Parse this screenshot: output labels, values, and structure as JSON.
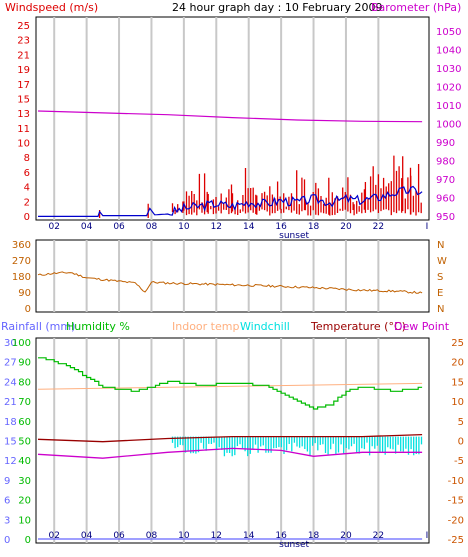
{
  "colors": {
    "wind": "#dd0000",
    "gust_avg": "#0000cc",
    "baro": "#cc00cc",
    "dir": "#c06000",
    "rain": "#6666ff",
    "hum": "#00bb00",
    "indoor": "#ffb080",
    "windchill": "#00e0e0",
    "temp": "#990000",
    "dew": "#cc00cc",
    "grid": "#c8c8c8",
    "tempaxis": "#cc5500"
  },
  "chart_data": [
    {
      "type": "bar",
      "panel": "wind-baro",
      "title": "24 hour graph day : 10 February 2009",
      "left_label": "Windspeed (m/s)",
      "right_label": "Barometer (hPa)",
      "left_ticks": [
        "25",
        "23",
        "21",
        "19",
        "17",
        "15",
        "13",
        "11",
        "10",
        "8",
        "6",
        "4",
        "2",
        "0"
      ],
      "right_ticks": [
        "1050",
        "1040",
        "1030",
        "1020",
        "1010",
        "1000",
        "990",
        "980",
        "970",
        "960",
        "950"
      ],
      "x_ticks": [
        "02",
        "04",
        "06",
        "08",
        "10",
        "12",
        "14",
        "16",
        "18",
        "20",
        "22"
      ],
      "x_end_label": "I",
      "sunset_label": "sunset",
      "ylim_left": [
        0,
        25
      ],
      "ylim_right": [
        947,
        1053
      ],
      "wind_peaks": [
        {
          "h": 3.8,
          "v": 1.0
        },
        {
          "h": 6.8,
          "v": 1.8
        },
        {
          "h": 8.3,
          "v": 3.0
        },
        {
          "h": 9.0,
          "v": 4.5
        },
        {
          "h": 9.8,
          "v": 5.8
        },
        {
          "h": 10.5,
          "v": 4.0
        },
        {
          "h": 11.3,
          "v": 6.0
        },
        {
          "h": 12.0,
          "v": 3.8
        },
        {
          "h": 12.8,
          "v": 6.5
        },
        {
          "h": 13.5,
          "v": 3.5
        },
        {
          "h": 14.3,
          "v": 6.0
        },
        {
          "h": 15.0,
          "v": 4.5
        },
        {
          "h": 15.8,
          "v": 6.5
        },
        {
          "h": 16.5,
          "v": 5.0
        },
        {
          "h": 17.3,
          "v": 6.0
        },
        {
          "h": 18.0,
          "v": 4.5
        },
        {
          "h": 18.8,
          "v": 6.5
        },
        {
          "h": 19.5,
          "v": 5.5
        },
        {
          "h": 20.2,
          "v": 7.0
        },
        {
          "h": 21.0,
          "v": 6.0
        },
        {
          "h": 21.8,
          "v": 8.0
        },
        {
          "h": 22.5,
          "v": 8.5
        },
        {
          "h": 23.0,
          "v": 7.0
        }
      ],
      "wind_avg": [
        {
          "h": 0.0,
          "v": 0.2
        },
        {
          "h": 3.7,
          "v": 0.2
        },
        {
          "h": 3.8,
          "v": 0.8
        },
        {
          "h": 4.0,
          "v": 0.3
        },
        {
          "h": 6.7,
          "v": 0.3
        },
        {
          "h": 6.9,
          "v": 1.2
        },
        {
          "h": 7.2,
          "v": 0.4
        },
        {
          "h": 8.0,
          "v": 0.5
        },
        {
          "h": 9.0,
          "v": 1.2
        },
        {
          "h": 10.0,
          "v": 1.5
        },
        {
          "h": 11.0,
          "v": 1.8
        },
        {
          "h": 12.0,
          "v": 1.5
        },
        {
          "h": 13.0,
          "v": 2.0
        },
        {
          "h": 14.0,
          "v": 1.8
        },
        {
          "h": 15.0,
          "v": 2.2
        },
        {
          "h": 16.0,
          "v": 2.0
        },
        {
          "h": 17.0,
          "v": 2.4
        },
        {
          "h": 18.0,
          "v": 2.0
        },
        {
          "h": 19.0,
          "v": 2.4
        },
        {
          "h": 20.0,
          "v": 2.2
        },
        {
          "h": 21.0,
          "v": 2.6
        },
        {
          "h": 22.0,
          "v": 3.2
        },
        {
          "h": 23.0,
          "v": 3.5
        },
        {
          "h": 23.7,
          "v": 3.3
        }
      ],
      "barometer": [
        {
          "h": 0,
          "v": 1004.0
        },
        {
          "h": 4,
          "v": 1003.0
        },
        {
          "h": 8,
          "v": 1002.0
        },
        {
          "h": 12,
          "v": 1000.5
        },
        {
          "h": 16,
          "v": 999.2
        },
        {
          "h": 20,
          "v": 998.5
        },
        {
          "h": 23.7,
          "v": 998.3
        }
      ]
    },
    {
      "type": "line",
      "panel": "wind-direction",
      "left_ticks": [
        "360",
        "270",
        "180",
        "90",
        "0"
      ],
      "right_ticks": [
        "N",
        "W",
        "S",
        "E",
        "N"
      ],
      "ylim": [
        0,
        360
      ],
      "direction": [
        {
          "h": 0,
          "v": 185
        },
        {
          "h": 1,
          "v": 195
        },
        {
          "h": 2,
          "v": 200
        },
        {
          "h": 3,
          "v": 170
        },
        {
          "h": 4,
          "v": 160
        },
        {
          "h": 5,
          "v": 150
        },
        {
          "h": 6,
          "v": 140
        },
        {
          "h": 6.6,
          "v": 90
        },
        {
          "h": 7,
          "v": 145
        },
        {
          "h": 8,
          "v": 140
        },
        {
          "h": 10,
          "v": 135
        },
        {
          "h": 12,
          "v": 130
        },
        {
          "h": 14,
          "v": 125
        },
        {
          "h": 16,
          "v": 118
        },
        {
          "h": 18,
          "v": 110
        },
        {
          "h": 20,
          "v": 100
        },
        {
          "h": 22,
          "v": 95
        },
        {
          "h": 23.7,
          "v": 85
        }
      ]
    },
    {
      "type": "line",
      "panel": "temp-humidity",
      "legend": [
        "Rainfall (mm)",
        "Humidity %",
        "Indoor temp",
        "Windchill",
        "Temperature (°C)",
        "Dew Point"
      ],
      "rain_ticks": [
        "30",
        "27",
        "24",
        "21",
        "18",
        "15",
        "12",
        "9",
        "6",
        "3",
        "0"
      ],
      "hum_ticks": [
        "100",
        "90",
        "80",
        "70",
        "60",
        "50",
        "40",
        "30",
        "20",
        "10",
        "0"
      ],
      "temp_ticks": [
        "25",
        "20",
        "15",
        "10",
        "5",
        "0",
        "-5",
        "-10",
        "-15",
        "-20",
        "-25"
      ],
      "ylim_hum": [
        0,
        100
      ],
      "ylim_temp": [
        -25,
        25
      ],
      "humidity": [
        {
          "h": 0,
          "v": 92
        },
        {
          "h": 1,
          "v": 90
        },
        {
          "h": 2,
          "v": 87
        },
        {
          "h": 3,
          "v": 82
        },
        {
          "h": 4,
          "v": 77
        },
        {
          "h": 5,
          "v": 76
        },
        {
          "h": 6,
          "v": 75
        },
        {
          "h": 7,
          "v": 77
        },
        {
          "h": 8,
          "v": 80
        },
        {
          "h": 10,
          "v": 78
        },
        {
          "h": 12,
          "v": 79
        },
        {
          "h": 14,
          "v": 78
        },
        {
          "h": 15,
          "v": 74
        },
        {
          "h": 16,
          "v": 70
        },
        {
          "h": 17,
          "v": 66
        },
        {
          "h": 18,
          "v": 68
        },
        {
          "h": 19,
          "v": 75
        },
        {
          "h": 20,
          "v": 77
        },
        {
          "h": 22,
          "v": 75
        },
        {
          "h": 23.7,
          "v": 77
        }
      ],
      "indoor_temp": [
        {
          "h": 0,
          "v": 13.0
        },
        {
          "h": 23.7,
          "v": 14.5
        }
      ],
      "temperature": [
        {
          "h": 0,
          "v": 0.3
        },
        {
          "h": 4,
          "v": -0.3
        },
        {
          "h": 8,
          "v": 0.5
        },
        {
          "h": 12,
          "v": 1.0
        },
        {
          "h": 16,
          "v": 1.0
        },
        {
          "h": 20,
          "v": 1.0
        },
        {
          "h": 23.7,
          "v": 1.5
        }
      ],
      "dew_point": [
        {
          "h": 0,
          "v": -3.5
        },
        {
          "h": 4,
          "v": -4.5
        },
        {
          "h": 8,
          "v": -3.0
        },
        {
          "h": 12,
          "v": -2.0
        },
        {
          "h": 15,
          "v": -2.5
        },
        {
          "h": 17,
          "v": -4.0
        },
        {
          "h": 20,
          "v": -3.0
        },
        {
          "h": 23.7,
          "v": -3.0
        }
      ],
      "windchill_range": {
        "start_h": 8.3,
        "end_h": 23.7,
        "high": 1.0,
        "low": -4.0
      },
      "rainfall": [
        {
          "h": 0,
          "v": 0
        },
        {
          "h": 23.7,
          "v": 0
        }
      ]
    }
  ]
}
